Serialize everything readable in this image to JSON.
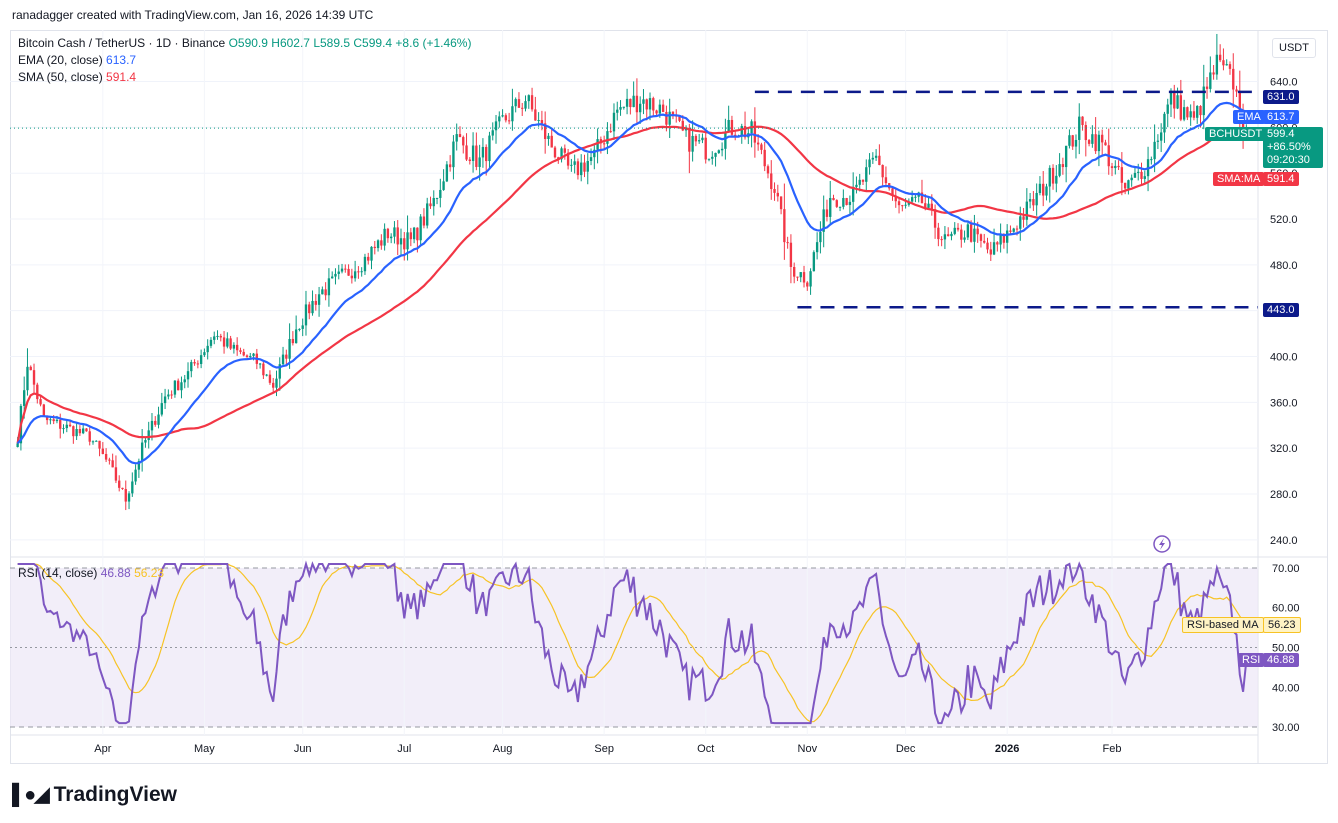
{
  "credit": "ranadagger created with TradingView.com, Jan 16, 2026 14:39 UTC",
  "legend": {
    "symbol": "Bitcoin Cash / TetherUS · 1D · Binance",
    "open": "O590.9",
    "high": "H602.7",
    "low": "L589.5",
    "close": "C599.4",
    "change": "+8.6 (+1.46%)",
    "ema_label": "EMA (20, close)",
    "ema_value": "613.7",
    "sma_label": "SMA (50, close)",
    "sma_value": "591.4",
    "rsi_label": "RSI (14, close)",
    "rsi_value": "46.88",
    "rsi_ma_value": "56.23"
  },
  "currency": "USDT",
  "tags": {
    "resistance": "631.0",
    "support": "443.0",
    "ema_name": "EMA",
    "ema_value": "613.7",
    "symbol_name": "BCHUSDT",
    "price": "599.4",
    "change_pct": "+86.50%",
    "countdown": "09:20:30",
    "sma_name": "SMA:MA",
    "sma_value": "591.4",
    "rsi_ma_name": "RSI-based MA",
    "rsi_ma_value": "56.23",
    "rsi_name": "RSI",
    "rsi_value": "46.88"
  },
  "colors": {
    "up": "#089981",
    "down": "#f23645",
    "ema": "#2962ff",
    "sma": "#f23645",
    "rsi": "#7e57c2",
    "rsi_ma": "#f7c325",
    "level": "#0c1a8a"
  },
  "chart_data": [
    {
      "type": "candlestick",
      "title": "Bitcoin Cash / TetherUS · 1D · Binance",
      "x_ticks": [
        "Apr",
        "May",
        "Jun",
        "Jul",
        "Aug",
        "Sep",
        "Oct",
        "Nov",
        "Dec",
        "2026",
        "Feb"
      ],
      "y_ticks": [
        "240.0",
        "280.0",
        "320.0",
        "360.0",
        "400.0",
        "440.0",
        "480.0",
        "520.0",
        "560.0",
        "600.0",
        "640.0"
      ],
      "ylim": [
        225,
        685
      ],
      "levels": [
        631.0,
        443.0
      ],
      "anchors": [
        [
          0,
          330
        ],
        [
          3,
          395
        ],
        [
          8,
          345
        ],
        [
          15,
          338
        ],
        [
          22,
          330
        ],
        [
          28,
          305
        ],
        [
          33,
          275
        ],
        [
          38,
          320
        ],
        [
          45,
          365
        ],
        [
          52,
          385
        ],
        [
          60,
          420
        ],
        [
          66,
          405
        ],
        [
          73,
          395
        ],
        [
          78,
          375
        ],
        [
          85,
          425
        ],
        [
          92,
          455
        ],
        [
          99,
          470
        ],
        [
          106,
          485
        ],
        [
          113,
          508
        ],
        [
          120,
          500
        ],
        [
          127,
          535
        ],
        [
          134,
          590
        ],
        [
          141,
          570
        ],
        [
          148,
          605
        ],
        [
          155,
          625
        ],
        [
          162,
          588
        ],
        [
          169,
          560
        ],
        [
          176,
          575
        ],
        [
          183,
          615
        ],
        [
          190,
          625
        ],
        [
          197,
          615
        ],
        [
          204,
          590
        ],
        [
          211,
          580
        ],
        [
          218,
          600
        ],
        [
          224,
          595
        ],
        [
          231,
          548
        ],
        [
          236,
          478
        ],
        [
          241,
          468
        ],
        [
          248,
          540
        ],
        [
          255,
          540
        ],
        [
          262,
          572
        ],
        [
          269,
          528
        ],
        [
          276,
          535
        ],
        [
          283,
          500
        ],
        [
          290,
          510
        ],
        [
          297,
          490
        ],
        [
          303,
          510
        ],
        [
          310,
          535
        ],
        [
          317,
          565
        ],
        [
          324,
          600
        ],
        [
          331,
          585
        ],
        [
          338,
          545
        ],
        [
          345,
          570
        ],
        [
          352,
          625
        ],
        [
          359,
          605
        ],
        [
          366,
          655
        ],
        [
          371,
          640
        ],
        [
          374,
          599.4
        ]
      ],
      "ema": {
        "name": "EMA (20, close)",
        "last": 613.7
      },
      "sma": {
        "name": "SMA (50, close)",
        "last": 591.4
      }
    },
    {
      "type": "line",
      "title": "RSI (14, close)",
      "y_ticks": [
        "30.00",
        "40.00",
        "50.00",
        "60.00",
        "70.00"
      ],
      "ylim": [
        28,
        72
      ],
      "bands": [
        30,
        50,
        70
      ],
      "rsi_last": 46.88,
      "rsi_ma_last": 56.23
    }
  ]
}
